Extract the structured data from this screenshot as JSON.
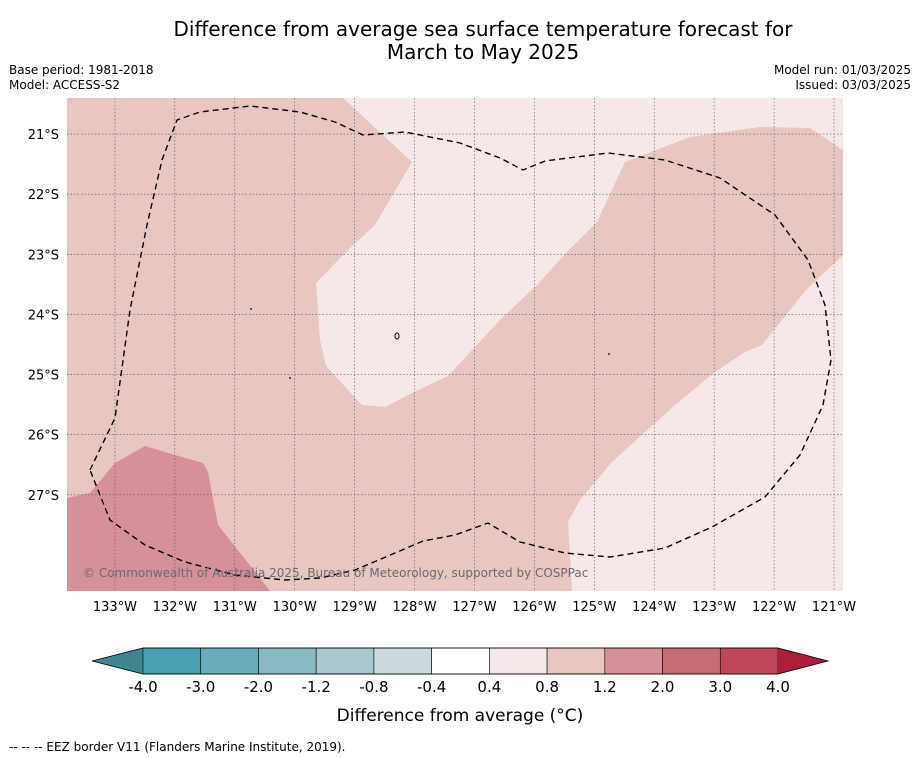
{
  "title_line1": "Difference from average sea surface temperature forecast for",
  "title_line2": "March to May 2025",
  "meta_left": {
    "base_period": "Base period: 1981-2018",
    "model": "Model: ACCESS-S2"
  },
  "meta_right": {
    "model_run": "Model run: 01/03/2025",
    "issued": "Issued: 03/03/2025"
  },
  "map": {
    "longitude_ticks": [
      "133°W",
      "132°W",
      "131°W",
      "130°W",
      "129°W",
      "128°W",
      "127°W",
      "126°W",
      "125°W",
      "124°W",
      "123°W",
      "122°W",
      "121°W"
    ],
    "latitude_ticks": [
      "21°S",
      "22°S",
      "23°S",
      "24°S",
      "25°S",
      "26°S",
      "27°S"
    ],
    "lon_range": [
      -133.8,
      -120.85
    ],
    "lat_range": [
      -28.6,
      -20.4
    ],
    "copyright": "© Commonwealth of Australia 2025, Bureau of Meteorology, supported by COSPPac",
    "eez_border": "dashed black"
  },
  "colorbar": {
    "title": "Difference from average (°C)",
    "labels": [
      "-4.0",
      "-3.0",
      "-2.0",
      "-1.2",
      "-0.8",
      "-0.4",
      "0.4",
      "0.8",
      "1.2",
      "2.0",
      "3.0",
      "4.0"
    ],
    "colors": [
      "#4a9fb0",
      "#6aacba",
      "#8ab8c3",
      "#a9c9ce",
      "#ccdadd",
      "#ffffff",
      "#f5e8e7",
      "#e8c6c2",
      "#d5909a",
      "#c96b74",
      "#c0465a"
    ],
    "under_color": "#3e8791",
    "over_color": "#ab1f3c"
  },
  "footer": "-- -- -- EEZ border V11 (Flanders Marine Institute, 2019)."
}
